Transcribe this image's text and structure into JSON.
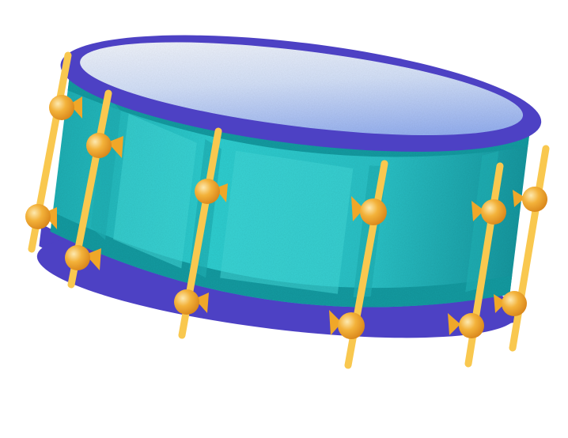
{
  "illustration": {
    "subject": "snare-drum",
    "colors": {
      "background": "#ffffff",
      "rim": "#4d41c4",
      "rim_dark": "#3d33a8",
      "shell": "#2cc7cc",
      "shell_light": "#43dcdd",
      "shell_dark": "#149ea4",
      "shell_ridge": "#1fb3b8",
      "head_light": "#f4f7ff",
      "head_dark": "#7e9ff0",
      "rod": "#f9c84f",
      "lug": "#f0a728",
      "lug_highlight": "#fde9b0",
      "lug_shadow": "#d9861a"
    }
  }
}
